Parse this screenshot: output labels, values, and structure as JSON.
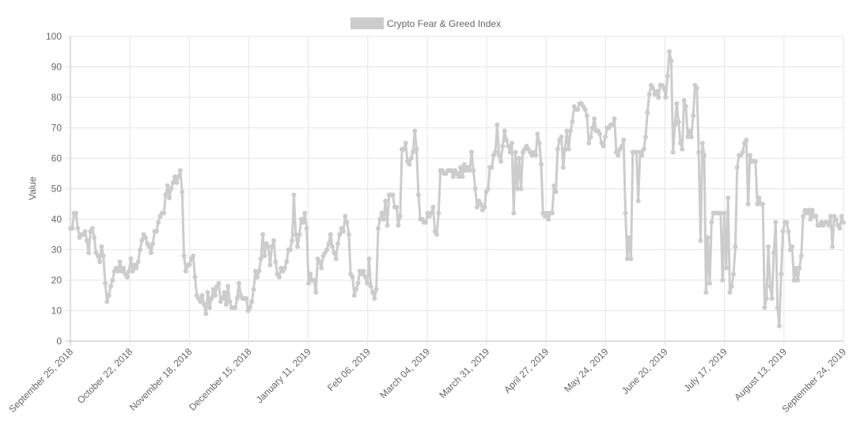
{
  "chart_data": {
    "type": "line",
    "legend": {
      "label": "Crypto Fear & Greed Index",
      "position": "top"
    },
    "ylabel": "Value",
    "xlabel": "",
    "ylim": [
      0,
      100
    ],
    "yticks": [
      0,
      10,
      20,
      30,
      40,
      50,
      60,
      70,
      80,
      90,
      100
    ],
    "grid": true,
    "x_ticks": [
      "September 25, 2018",
      "October 22, 2018",
      "November 18, 2018",
      "December 15, 2018",
      "January 11, 2019",
      "Feb 06, 2019",
      "March 04, 2019",
      "March 31, 2019",
      "April 27, 2019",
      "May 24, 2019",
      "June 20, 2019",
      "July 17, 2019",
      "August 13, 2019",
      "September 24, 2019"
    ],
    "x_start": "2018-09-25",
    "series": [
      {
        "name": "Crypto Fear & Greed Index",
        "color": "#cccccc",
        "values": [
          37,
          37,
          42,
          42,
          37,
          34,
          35,
          35,
          36,
          33,
          29,
          36,
          37,
          34,
          29,
          28,
          26,
          31,
          28,
          19,
          13,
          15,
          18,
          20,
          23,
          24,
          23,
          26,
          23,
          24,
          22,
          21,
          23,
          27,
          23,
          25,
          24,
          26,
          30,
          33,
          35,
          34,
          32,
          31,
          29,
          32,
          36,
          36,
          39,
          41,
          42,
          42,
          48,
          51,
          47,
          50,
          52,
          54,
          52,
          54,
          56,
          49,
          28,
          23,
          25,
          25,
          27,
          28,
          21,
          15,
          14,
          13,
          15,
          12,
          9,
          16,
          11,
          14,
          17,
          15,
          18,
          19,
          13,
          14,
          16,
          12,
          18,
          13,
          11,
          11,
          11,
          14,
          19,
          15,
          14,
          14,
          14,
          10,
          11,
          13,
          17,
          23,
          21,
          23,
          27,
          35,
          28,
          32,
          31,
          25,
          31,
          33,
          26,
          22,
          21,
          24,
          23,
          24,
          26,
          30,
          30,
          33,
          48,
          35,
          31,
          35,
          40,
          39,
          42,
          37,
          19,
          22,
          20,
          20,
          16,
          27,
          26,
          24,
          28,
          29,
          30,
          32,
          35,
          31,
          29,
          27,
          32,
          35,
          37,
          36,
          41,
          39,
          35,
          22,
          21,
          15,
          17,
          19,
          23,
          22,
          23,
          21,
          19,
          27,
          18,
          16,
          14,
          17,
          37,
          40,
          42,
          40,
          46,
          38,
          48,
          48,
          48,
          44,
          44,
          38,
          41,
          63,
          63,
          65,
          59,
          58,
          60,
          62,
          69,
          63,
          48,
          40,
          40,
          39,
          39,
          42,
          41,
          42,
          44,
          36,
          35,
          42,
          56,
          56,
          55,
          55,
          56,
          56,
          56,
          54,
          56,
          55,
          54,
          57,
          54,
          58,
          56,
          57,
          56,
          62,
          56,
          50,
          44,
          46,
          45,
          43,
          44,
          49,
          50,
          57,
          57,
          61,
          62,
          71,
          61,
          59,
          64,
          69,
          66,
          64,
          62,
          65,
          42,
          62,
          50,
          60,
          50,
          62,
          63,
          64,
          63,
          62,
          61,
          62,
          61,
          68,
          65,
          58,
          42,
          41,
          42,
          40,
          42,
          42,
          51,
          49,
          63,
          66,
          67,
          57,
          63,
          69,
          63,
          69,
          72,
          77,
          76,
          76,
          78,
          78,
          77,
          76,
          74,
          65,
          67,
          70,
          73,
          69,
          69,
          68,
          65,
          64,
          67,
          70,
          70,
          71,
          71,
          73,
          62,
          61,
          63,
          64,
          66,
          42,
          27,
          34,
          27,
          62,
          62,
          62,
          46,
          62,
          61,
          63,
          67,
          75,
          81,
          84,
          83,
          81,
          82,
          80,
          84,
          84,
          83,
          80,
          87,
          95,
          92,
          62,
          71,
          78,
          72,
          65,
          63,
          79,
          77,
          67,
          69,
          67,
          74,
          84,
          83,
          62,
          33,
          65,
          61,
          16,
          34,
          19,
          39,
          42,
          42,
          42,
          42,
          42,
          20,
          42,
          24,
          47,
          16,
          18,
          22,
          31,
          57,
          61,
          61,
          62,
          65,
          66,
          45,
          61,
          59,
          59,
          59,
          45,
          47,
          45,
          45,
          11,
          14,
          31,
          18,
          14,
          29,
          39,
          11,
          5,
          22,
          36,
          39,
          39,
          36,
          30,
          31,
          20,
          24,
          20,
          24,
          28,
          41,
          43,
          42,
          43,
          40,
          43,
          41,
          41,
          38,
          38,
          39,
          38,
          39,
          39,
          38,
          41,
          31,
          41,
          40,
          38,
          37,
          41,
          39
        ]
      }
    ]
  }
}
